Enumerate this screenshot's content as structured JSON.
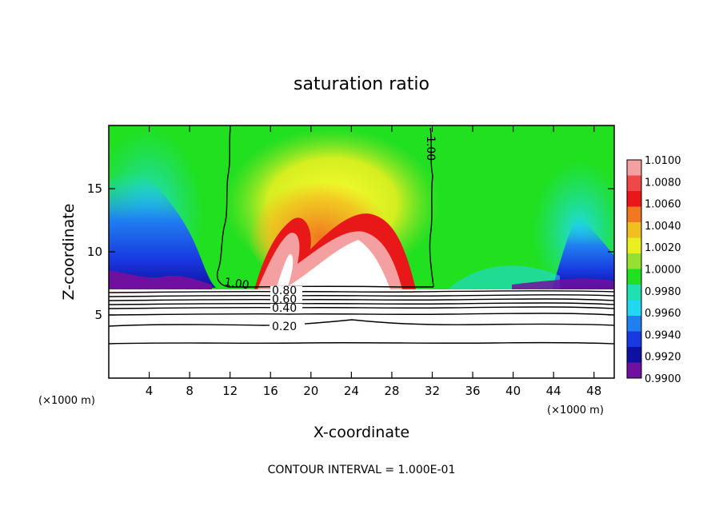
{
  "chart_data": {
    "type": "contour",
    "title": "saturation ratio",
    "xlabel": "X-coordinate",
    "ylabel": "Z-coordinate",
    "x_unit": "(×1000 m)",
    "xlim": [
      0,
      50
    ],
    "ylim": [
      0,
      20
    ],
    "x_ticks": [
      4,
      8,
      12,
      16,
      20,
      24,
      28,
      32,
      36,
      40,
      44,
      48
    ],
    "y_ticks": [
      5,
      10,
      15
    ],
    "footer": "CONTOUR INTERVAL = 1.000E-01",
    "colorbar": {
      "levels": [
        "1.0100",
        "1.0080",
        "1.0060",
        "1.0040",
        "1.0020",
        "1.0000",
        "0.9980",
        "0.9960",
        "0.9940",
        "0.9920",
        "0.9900"
      ],
      "colors": [
        "#f4a0a0",
        "#f04848",
        "#e81818",
        "#f07820",
        "#f0c020",
        "#e8f020",
        "#98e030",
        "#20e020",
        "#20e0b0",
        "#20d8f0",
        "#2080f0",
        "#1838e0",
        "#1010a0",
        "#7010a0"
      ]
    },
    "contour_lines": [
      {
        "level": 1.0,
        "label": "1.00"
      },
      {
        "level": 0.8,
        "label": "0.80"
      },
      {
        "level": 0.6,
        "label": "0.60"
      },
      {
        "level": 0.4,
        "label": "0.40"
      },
      {
        "level": 0.2,
        "label": "0.20"
      }
    ]
  }
}
